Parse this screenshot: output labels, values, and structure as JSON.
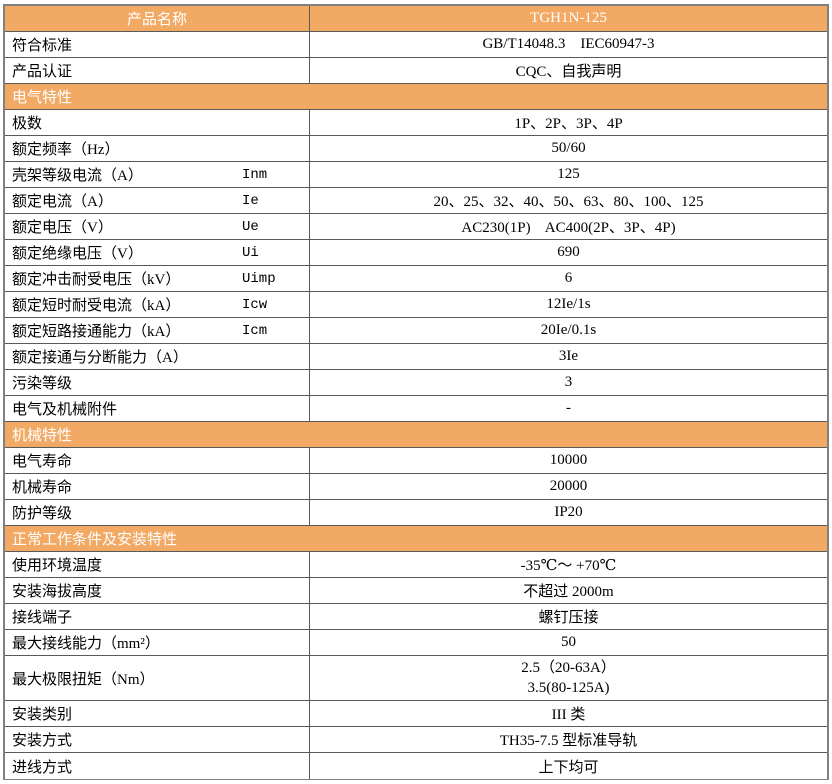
{
  "colors": {
    "orange": "#F2A964",
    "header_text": "#FFFFFF",
    "border_inner": "#595959",
    "border_outer": "#808080",
    "text": "#000000",
    "page_bg": "#FFFFFF"
  },
  "table": {
    "rows": [
      {
        "type": "header",
        "label": "产品名称",
        "value": "TGH1N-125"
      },
      {
        "type": "row",
        "label": "符合标准",
        "value": "GB/T14048.3    IEC60947-3"
      },
      {
        "type": "row",
        "label": "产品认证",
        "value": "CQC、自我声明"
      },
      {
        "type": "section",
        "title": "电气特性"
      },
      {
        "type": "row",
        "label": "极数",
        "value": "1P、2P、3P、4P"
      },
      {
        "type": "row",
        "label": "额定频率（Hz）",
        "value": "50/60"
      },
      {
        "type": "row",
        "label": "壳架等级电流（A）",
        "symbol": "Inm",
        "value": "125"
      },
      {
        "type": "row",
        "label": "额定电流（A）",
        "symbol": "Ie",
        "value": "20、25、32、40、50、63、80、100、125"
      },
      {
        "type": "row",
        "label": "额定电压（V）",
        "symbol": "Ue",
        "value": "AC230(1P)    AC400(2P、3P、4P)"
      },
      {
        "type": "row",
        "label": "额定绝缘电压（V）",
        "symbol": "Ui",
        "value": "690"
      },
      {
        "type": "row",
        "label": "额定冲击耐受电压（kV）",
        "symbol": "Uimp",
        "value": "6"
      },
      {
        "type": "row",
        "label": "额定短时耐受电流（kA）",
        "symbol": "Icw",
        "value": "12Ie/1s"
      },
      {
        "type": "row",
        "label": "额定短路接通能力（kA）",
        "symbol": "Icm",
        "value": "20Ie/0.1s"
      },
      {
        "type": "row",
        "label": "额定接通与分断能力（A）",
        "value": "3Ie"
      },
      {
        "type": "row",
        "label": "污染等级",
        "value": "3"
      },
      {
        "type": "row",
        "label": "电气及机械附件",
        "value": "-"
      },
      {
        "type": "section",
        "title": "机械特性"
      },
      {
        "type": "row",
        "label": "电气寿命",
        "value": "10000"
      },
      {
        "type": "row",
        "label": "机械寿命",
        "value": "20000"
      },
      {
        "type": "row",
        "label": "防护等级",
        "value": "IP20"
      },
      {
        "type": "section",
        "title": "正常工作条件及安装特性"
      },
      {
        "type": "row",
        "label": "使用环境温度",
        "value": "-35℃～ +70℃"
      },
      {
        "type": "row",
        "label": "安装海拔高度",
        "value": "不超过 2000m"
      },
      {
        "type": "row",
        "label": "接线端子",
        "value": "螺钉压接"
      },
      {
        "type": "row",
        "label": "最大接线能力（mm²）",
        "value": "50"
      },
      {
        "type": "row",
        "label": "最大极限扭矩（Nm）",
        "value": [
          "2.5（20-63A）",
          "3.5(80-125A)"
        ]
      },
      {
        "type": "row",
        "label": "安装类别",
        "value": "III 类"
      },
      {
        "type": "row",
        "label": "安装方式",
        "value": "TH35-7.5 型标准导轨"
      },
      {
        "type": "row",
        "label": "进线方式",
        "value": "上下均可"
      }
    ]
  }
}
